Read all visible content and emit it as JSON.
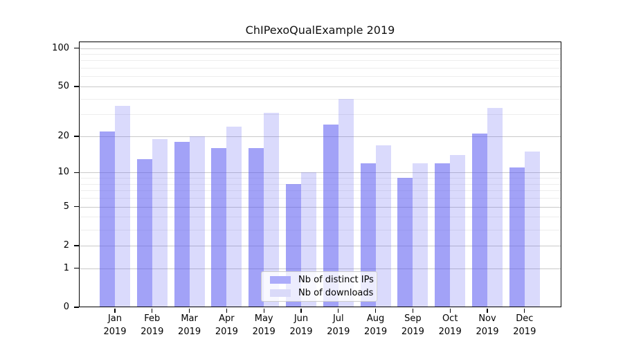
{
  "chart_data": {
    "type": "bar",
    "title": "ChIPexoQualExample 2019",
    "categories": [
      "Jan",
      "Feb",
      "Mar",
      "Apr",
      "May",
      "Jun",
      "Jul",
      "Aug",
      "Sep",
      "Oct",
      "Nov",
      "Dec"
    ],
    "category_year": "2019",
    "series": [
      {
        "name": "Nb of distinct IPs",
        "color": "#acacfa",
        "fill_rgba": "rgba(85,85,240,0.55)",
        "values": [
          22,
          13,
          18,
          16,
          16,
          8,
          25,
          12,
          9,
          12,
          21,
          11
        ]
      },
      {
        "name": "Nb of downloads",
        "color": "#dadaf9",
        "fill_rgba": "rgba(85,85,240,0.22)",
        "values": [
          35,
          19,
          20,
          24,
          31,
          10,
          40,
          17,
          12,
          14,
          34,
          15
        ]
      }
    ],
    "yscale": "log1p",
    "ylim": [
      0,
      112
    ],
    "y_major_ticks": [
      0,
      1,
      2,
      5,
      10,
      20,
      50,
      100
    ],
    "y_minor_ticks": [
      3,
      4,
      6,
      7,
      8,
      9,
      30,
      40,
      60,
      70,
      80,
      90
    ],
    "grid": "horizontal major+minor, behind semi-transparent bars",
    "grid_major_color": "#c9c9c9",
    "grid_minor_color": "#ededed",
    "legend_position": "lower center",
    "xlabel": "",
    "ylabel": ""
  }
}
